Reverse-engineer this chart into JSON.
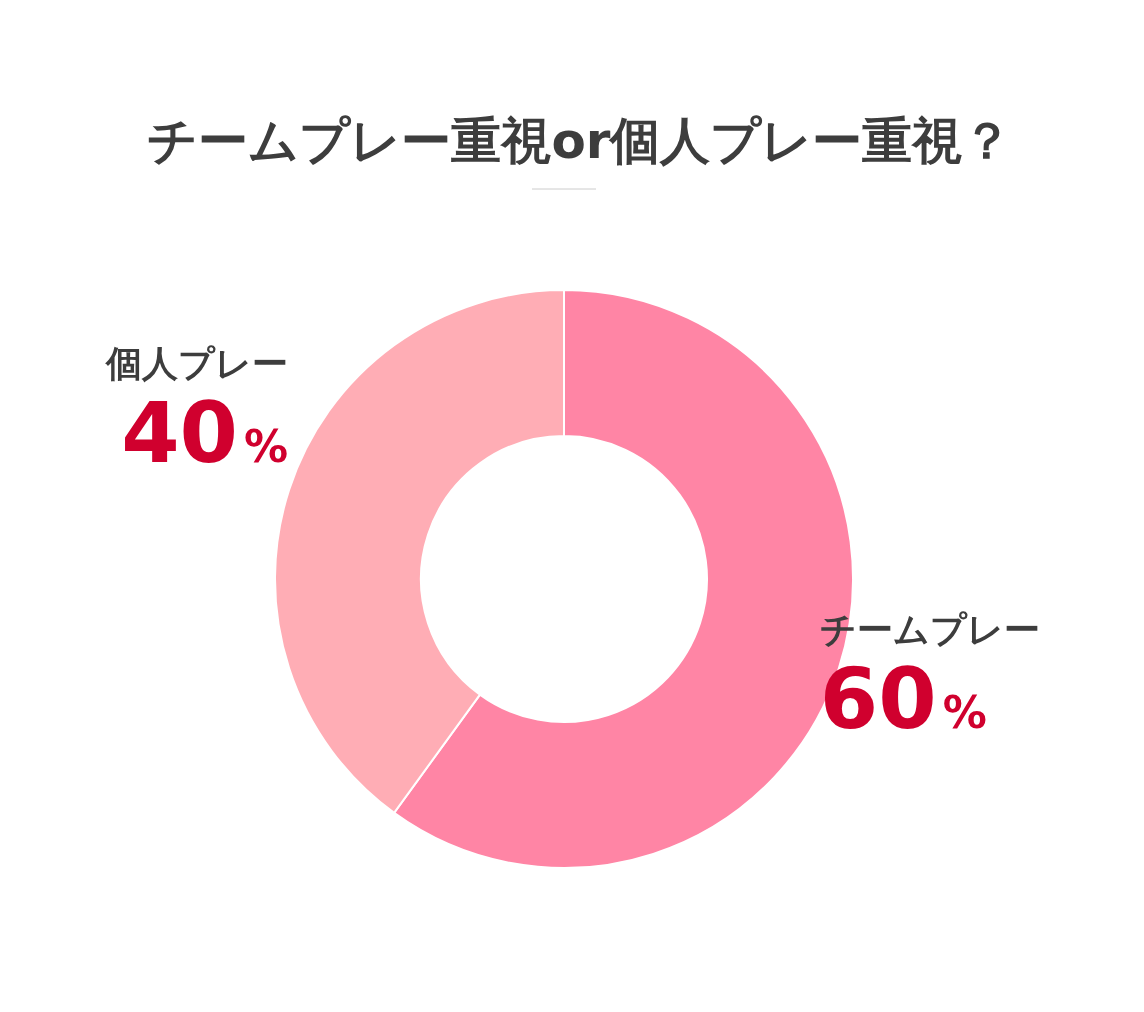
{
  "chart_data": {
    "type": "donut",
    "title": "チームプレー重視or個人プレー重視？",
    "categories": [
      "チームプレー",
      "個人プレー"
    ],
    "values": [
      60,
      40
    ],
    "colors": [
      "#ff85a5",
      "#ffadb5"
    ],
    "value_labels": [
      "60%",
      "40%"
    ],
    "legend": false
  }
}
